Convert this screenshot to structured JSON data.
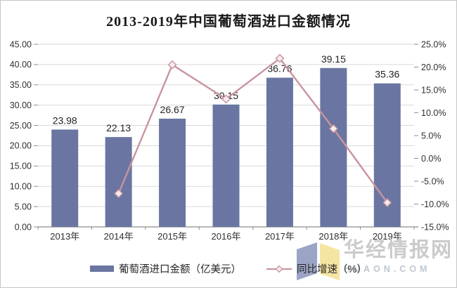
{
  "chart_data": {
    "type": "bar",
    "subtype": "combo-bar-line-dual-axis",
    "title": "2013-2019年中国葡萄酒进口金额情况",
    "categories": [
      "2013年",
      "2014年",
      "2015年",
      "2016年",
      "2017年",
      "2018年",
      "2019年"
    ],
    "series": [
      {
        "name": "葡萄酒进口金额（亿美元）",
        "type": "bar",
        "axis": "left",
        "values": [
          23.98,
          22.13,
          26.67,
          30.15,
          36.76,
          39.15,
          35.36
        ],
        "value_labels": [
          "23.98",
          "22.13",
          "26.67",
          "30.15",
          "36.76",
          "39.15",
          "35.36"
        ],
        "color": "#6A76A1"
      },
      {
        "name": "同比增速（%）",
        "type": "line",
        "axis": "right",
        "marker": "diamond",
        "values": [
          null,
          -7.7,
          20.5,
          13.0,
          21.9,
          6.5,
          -9.7
        ],
        "color": "#C9949F"
      }
    ],
    "left_axis": {
      "min": 0,
      "max": 45,
      "step": 5,
      "ticks": [
        "45.00",
        "40.00",
        "35.00",
        "30.00",
        "25.00",
        "20.00",
        "15.00",
        "10.00",
        "5.00",
        "0.00"
      ]
    },
    "right_axis": {
      "min": -15,
      "max": 25,
      "step": 5,
      "ticks": [
        "25.0%",
        "20.0%",
        "15.0%",
        "10.0%",
        "5.0%",
        "0.0%",
        "-5.0%",
        "-10.0%",
        "-15.0%"
      ]
    },
    "grid": "horizontal",
    "legend_position": "bottom"
  },
  "colors": {
    "bar": "#6A76A1",
    "line": "#C9949F",
    "marker_fill": "#F5ECEE",
    "grid": "#D9D9D9",
    "axis": "#8C8C8C",
    "tick_text": "#303030",
    "value_label": "#1F1F1F",
    "logo_blue": "#9BA4C4",
    "logo_yellow": "#F5E5A3"
  },
  "watermark": {
    "site_name": "华经情报网",
    "domain": "HUAON.COM"
  }
}
